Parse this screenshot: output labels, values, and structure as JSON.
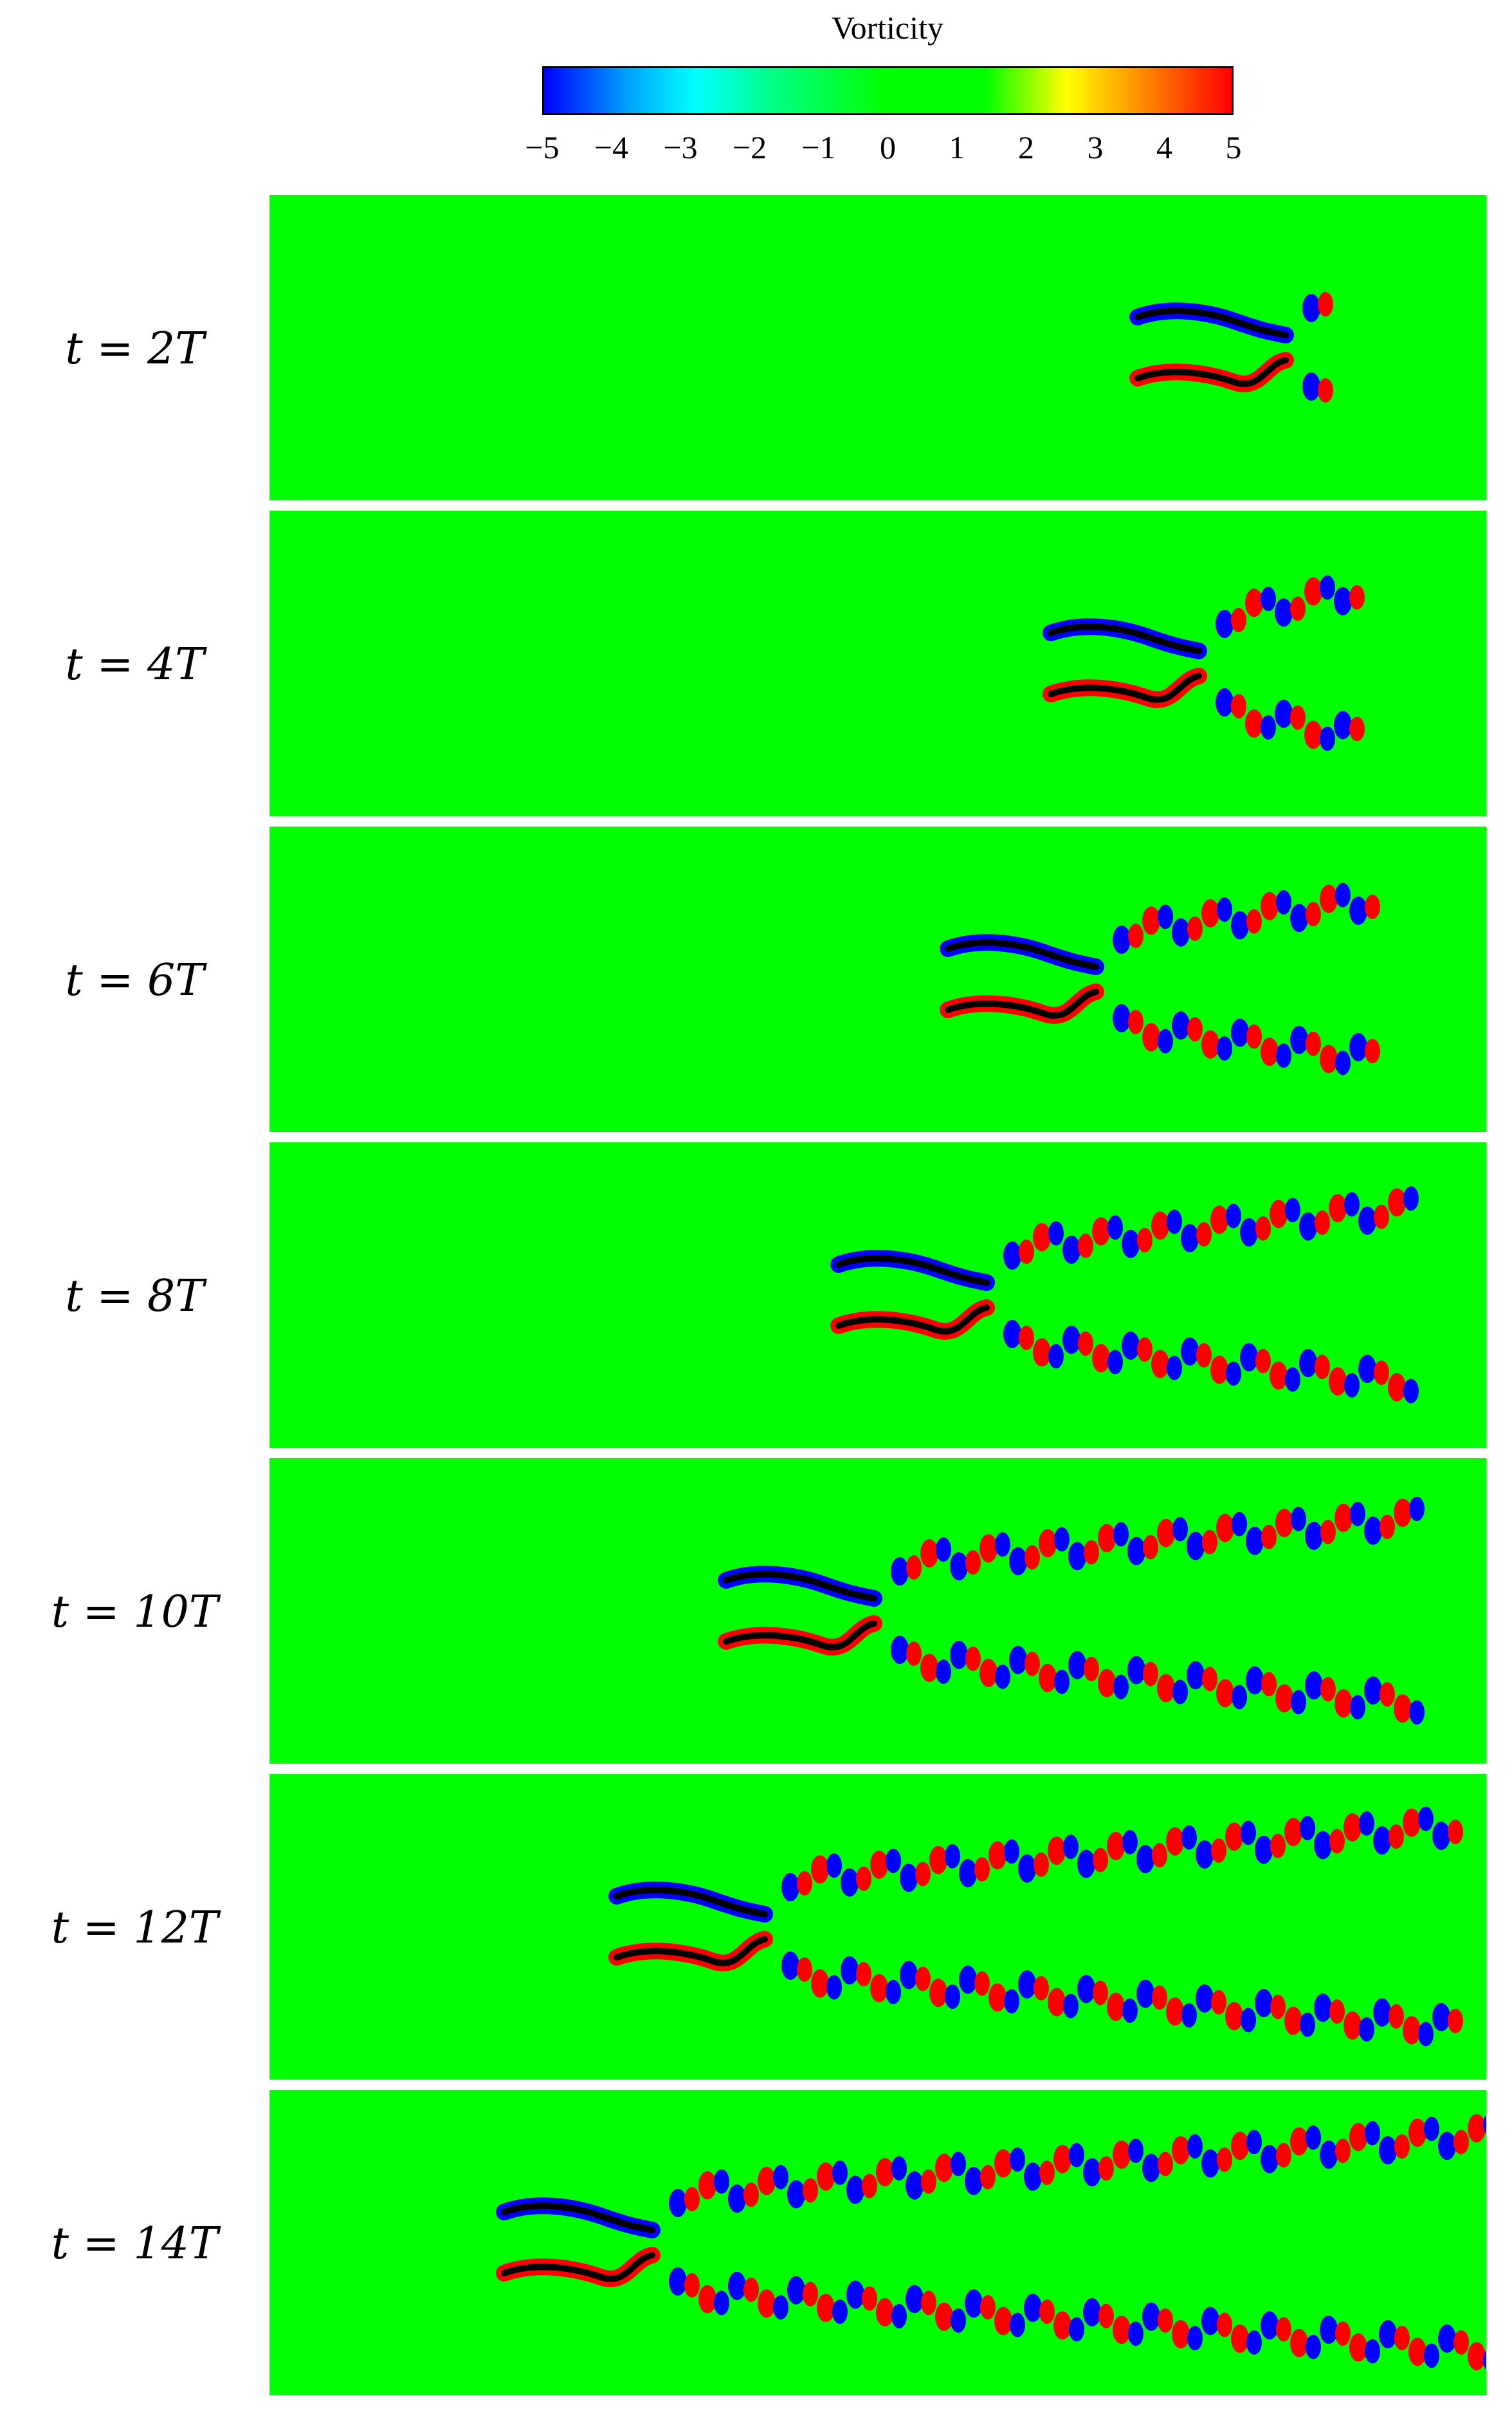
{
  "colorbar": {
    "title": "Vorticity",
    "ticks": [
      "−5",
      "−4",
      "−3",
      "−2",
      "−1",
      "0",
      "1",
      "2",
      "3",
      "4",
      "5"
    ],
    "colors": {
      "negative": "#0000ff",
      "background": "#00ff00",
      "positive": "#ff0000",
      "body": "#000000"
    }
  },
  "panels": [
    {
      "label": "t = 2T"
    },
    {
      "label": "t = 4T"
    },
    {
      "label": "t = 6T"
    },
    {
      "label": "t = 8T"
    },
    {
      "label": "t = 10T"
    },
    {
      "label": "t = 12T"
    },
    {
      "label": "t = 14T"
    }
  ]
}
